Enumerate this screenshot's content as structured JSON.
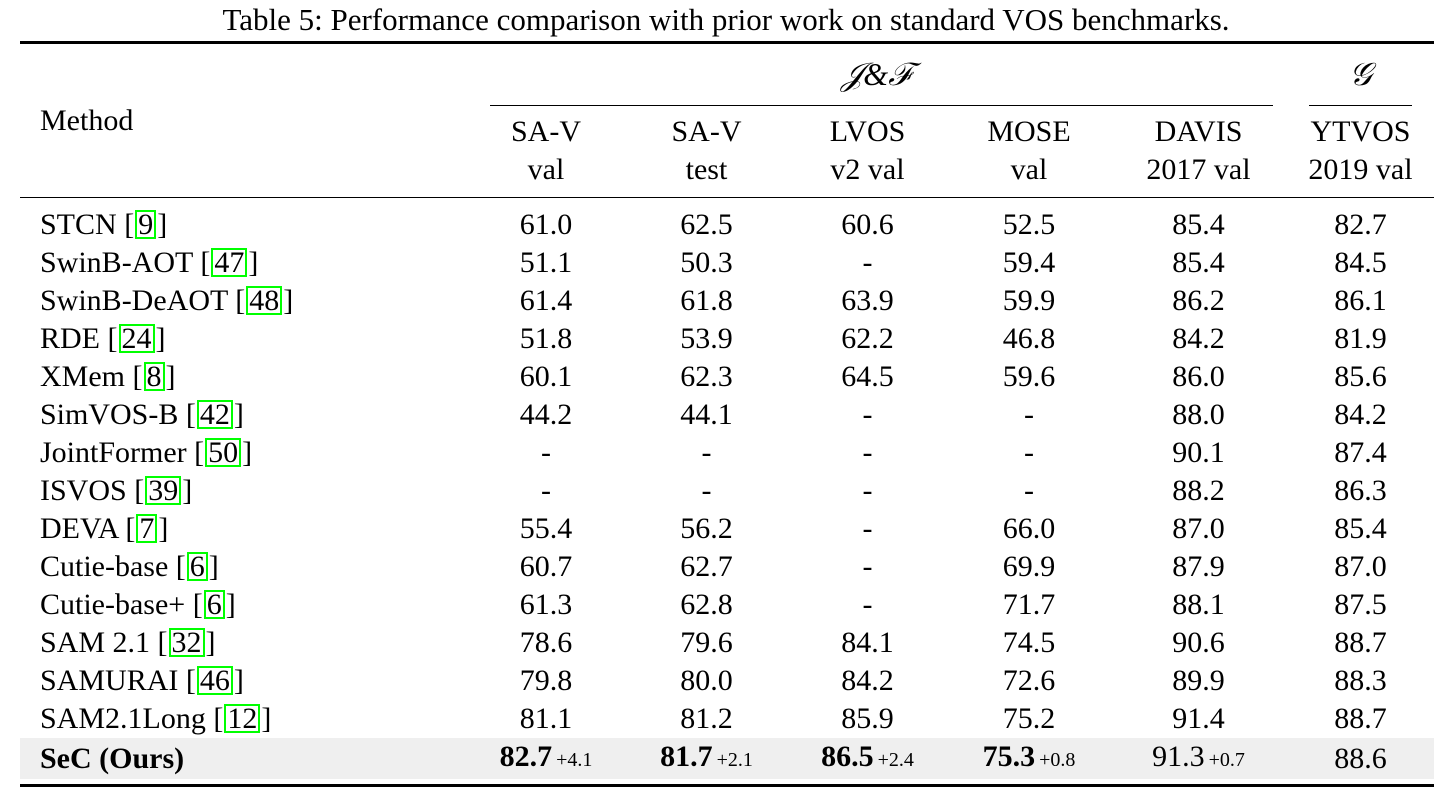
{
  "caption": "Table 5: Performance comparison with prior work on standard VOS benchmarks.",
  "header": {
    "method": "Method",
    "group_jf": "𝒥&ℱ",
    "group_g": "𝒢",
    "columns": [
      {
        "line1": "SA-V",
        "line2": "val"
      },
      {
        "line1": "SA-V",
        "line2": "test"
      },
      {
        "line1": "LVOS",
        "line2": "v2 val"
      },
      {
        "line1": "MOSE",
        "line2": "val"
      },
      {
        "line1": "DAVIS",
        "line2": "2017 val"
      },
      {
        "line1": "YTVOS",
        "line2": "2019 val"
      }
    ]
  },
  "rows": [
    {
      "method": "STCN",
      "ref": "9",
      "values": [
        "61.0",
        "62.5",
        "60.6",
        "52.5",
        "85.4",
        "82.7"
      ]
    },
    {
      "method": "SwinB-AOT",
      "ref": "47",
      "values": [
        "51.1",
        "50.3",
        "-",
        "59.4",
        "85.4",
        "84.5"
      ]
    },
    {
      "method": "SwinB-DeAOT",
      "ref": "48",
      "values": [
        "61.4",
        "61.8",
        "63.9",
        "59.9",
        "86.2",
        "86.1"
      ]
    },
    {
      "method": "RDE",
      "ref": "24",
      "values": [
        "51.8",
        "53.9",
        "62.2",
        "46.8",
        "84.2",
        "81.9"
      ]
    },
    {
      "method": "XMem",
      "ref": "8",
      "values": [
        "60.1",
        "62.3",
        "64.5",
        "59.6",
        "86.0",
        "85.6"
      ]
    },
    {
      "method": "SimVOS-B",
      "ref": "42",
      "values": [
        "44.2",
        "44.1",
        "-",
        "-",
        "88.0",
        "84.2"
      ]
    },
    {
      "method": "JointFormer",
      "ref": "50",
      "values": [
        "-",
        "-",
        "-",
        "-",
        "90.1",
        "87.4"
      ]
    },
    {
      "method": "ISVOS",
      "ref": "39",
      "values": [
        "-",
        "-",
        "-",
        "-",
        "88.2",
        "86.3"
      ]
    },
    {
      "method": "DEVA",
      "ref": "7",
      "values": [
        "55.4",
        "56.2",
        "-",
        "66.0",
        "87.0",
        "85.4"
      ]
    },
    {
      "method": "Cutie-base",
      "ref": "6",
      "values": [
        "60.7",
        "62.7",
        "-",
        "69.9",
        "87.9",
        "87.0"
      ]
    },
    {
      "method": "Cutie-base+",
      "ref": "6",
      "values": [
        "61.3",
        "62.8",
        "-",
        "71.7",
        "88.1",
        "87.5"
      ]
    },
    {
      "method": "SAM 2.1",
      "ref": "32",
      "values": [
        "78.6",
        "79.6",
        "84.1",
        "74.5",
        "90.6",
        "88.7"
      ]
    },
    {
      "method": "SAMURAI",
      "ref": "46",
      "values": [
        "79.8",
        "80.0",
        "84.2",
        "72.6",
        "89.9",
        "88.3"
      ]
    },
    {
      "method": "SAM2.1Long",
      "ref": "12",
      "values": [
        "81.1",
        "81.2",
        "85.9",
        "75.2",
        "91.4",
        "88.7"
      ]
    }
  ],
  "ours": {
    "method": "SeC (Ours)",
    "cells": [
      {
        "value": "82.7",
        "delta": "+4.1"
      },
      {
        "value": "81.7",
        "delta": "+2.1"
      },
      {
        "value": "86.5",
        "delta": "+2.4"
      },
      {
        "value": "75.3",
        "delta": "+0.8"
      },
      {
        "value": "91.3",
        "delta": "+0.7"
      },
      {
        "value": "88.6",
        "delta": ""
      }
    ]
  }
}
